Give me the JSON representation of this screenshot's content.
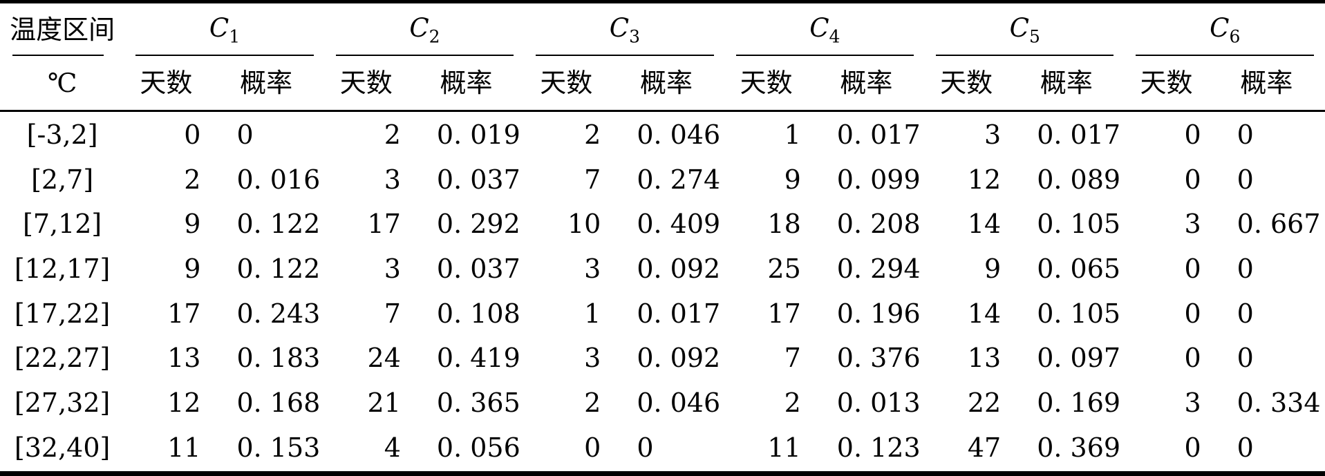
{
  "table": {
    "col1_header": {
      "line1": "温度区间",
      "line2": "℃"
    },
    "groups": [
      {
        "label": "C",
        "sub": "1"
      },
      {
        "label": "C",
        "sub": "2"
      },
      {
        "label": "C",
        "sub": "3"
      },
      {
        "label": "C",
        "sub": "4"
      },
      {
        "label": "C",
        "sub": "5"
      },
      {
        "label": "C",
        "sub": "6"
      }
    ],
    "subheaders": {
      "days": "天数",
      "prob": "概率"
    },
    "rows": [
      {
        "interval": "[-3,2]",
        "cells": [
          [
            "0",
            "0"
          ],
          [
            "2",
            "0. 019"
          ],
          [
            "2",
            "0. 046"
          ],
          [
            "1",
            "0. 017"
          ],
          [
            "3",
            "0. 017"
          ],
          [
            "0",
            "0"
          ]
        ]
      },
      {
        "interval": "[2,7]",
        "cells": [
          [
            "2",
            "0. 016"
          ],
          [
            "3",
            "0. 037"
          ],
          [
            "7",
            "0. 274"
          ],
          [
            "9",
            "0. 099"
          ],
          [
            "12",
            "0. 089"
          ],
          [
            "0",
            "0"
          ]
        ]
      },
      {
        "interval": "[7,12]",
        "cells": [
          [
            "9",
            "0. 122"
          ],
          [
            "17",
            "0. 292"
          ],
          [
            "10",
            "0. 409"
          ],
          [
            "18",
            "0. 208"
          ],
          [
            "14",
            "0. 105"
          ],
          [
            "3",
            "0. 667"
          ]
        ]
      },
      {
        "interval": "[12,17]",
        "cells": [
          [
            "9",
            "0. 122"
          ],
          [
            "3",
            "0. 037"
          ],
          [
            "3",
            "0. 092"
          ],
          [
            "25",
            "0. 294"
          ],
          [
            "9",
            "0. 065"
          ],
          [
            "0",
            "0"
          ]
        ]
      },
      {
        "interval": "[17,22]",
        "cells": [
          [
            "17",
            "0. 243"
          ],
          [
            "7",
            "0. 108"
          ],
          [
            "1",
            "0. 017"
          ],
          [
            "17",
            "0. 196"
          ],
          [
            "14",
            "0. 105"
          ],
          [
            "0",
            "0"
          ]
        ]
      },
      {
        "interval": "[22,27]",
        "cells": [
          [
            "13",
            "0. 183"
          ],
          [
            "24",
            "0. 419"
          ],
          [
            "3",
            "0. 092"
          ],
          [
            "7",
            "0. 376"
          ],
          [
            "13",
            "0. 097"
          ],
          [
            "0",
            "0"
          ]
        ]
      },
      {
        "interval": "[27,32]",
        "cells": [
          [
            "12",
            "0. 168"
          ],
          [
            "21",
            "0. 365"
          ],
          [
            "2",
            "0. 046"
          ],
          [
            "2",
            "0. 013"
          ],
          [
            "22",
            "0. 169"
          ],
          [
            "3",
            "0. 334"
          ]
        ]
      },
      {
        "interval": "[32,40]",
        "cells": [
          [
            "11",
            "0. 153"
          ],
          [
            "4",
            "0. 056"
          ],
          [
            "0",
            "0"
          ],
          [
            "11",
            "0. 123"
          ],
          [
            "47",
            "0. 369"
          ],
          [
            "0",
            "0"
          ]
        ]
      }
    ]
  },
  "chart_data": {
    "type": "table",
    "title": "",
    "row_header_label": "温度区间 ℃",
    "column_groups": [
      "C1",
      "C2",
      "C3",
      "C4",
      "C5",
      "C6"
    ],
    "sub_columns": [
      "天数",
      "概率"
    ],
    "intervals": [
      "[-3,2]",
      "[2,7]",
      "[7,12]",
      "[12,17]",
      "[17,22]",
      "[22,27]",
      "[27,32]",
      "[32,40]"
    ],
    "series": [
      {
        "name": "C1",
        "days": [
          0,
          2,
          9,
          9,
          17,
          13,
          12,
          11
        ],
        "prob": [
          0,
          0.016,
          0.122,
          0.122,
          0.243,
          0.183,
          0.168,
          0.153
        ]
      },
      {
        "name": "C2",
        "days": [
          2,
          3,
          17,
          3,
          7,
          24,
          21,
          4
        ],
        "prob": [
          0.019,
          0.037,
          0.292,
          0.037,
          0.108,
          0.419,
          0.365,
          0.056
        ]
      },
      {
        "name": "C3",
        "days": [
          2,
          7,
          10,
          3,
          1,
          3,
          2,
          0
        ],
        "prob": [
          0.046,
          0.274,
          0.409,
          0.092,
          0.017,
          0.092,
          0.046,
          0
        ]
      },
      {
        "name": "C4",
        "days": [
          1,
          9,
          18,
          25,
          17,
          7,
          2,
          11
        ],
        "prob": [
          0.017,
          0.099,
          0.208,
          0.294,
          0.196,
          0.376,
          0.013,
          0.123
        ]
      },
      {
        "name": "C5",
        "days": [
          3,
          12,
          14,
          9,
          14,
          13,
          22,
          47
        ],
        "prob": [
          0.017,
          0.089,
          0.105,
          0.065,
          0.105,
          0.097,
          0.169,
          0.369
        ]
      },
      {
        "name": "C6",
        "days": [
          0,
          0,
          3,
          0,
          0,
          0,
          3,
          0
        ],
        "prob": [
          0,
          0,
          0.667,
          0,
          0,
          0,
          0.334,
          0
        ]
      }
    ]
  }
}
